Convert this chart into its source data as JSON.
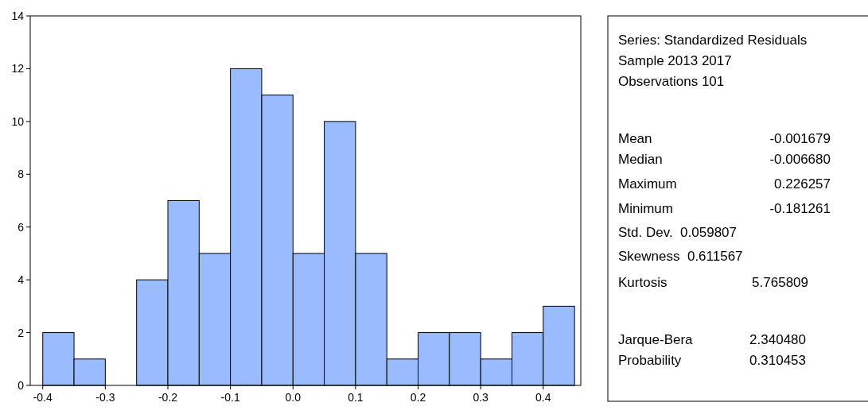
{
  "chart_data": {
    "type": "histogram",
    "bins": [
      -0.4,
      -0.35,
      -0.3,
      -0.25,
      -0.2,
      -0.15,
      -0.1,
      -0.05,
      0,
      0.05,
      0.1,
      0.15,
      0.2,
      0.25,
      0.3,
      0.35,
      0.4,
      0.45
    ],
    "values": [
      2,
      1,
      0,
      4,
      7,
      5,
      12,
      11,
      5,
      10,
      5,
      1,
      2,
      2,
      1,
      2,
      3
    ],
    "color": "#99bbff",
    "xlim": [
      -0.42,
      0.46
    ],
    "xticks": [
      -0.4,
      -0.3,
      -0.2,
      -0.1,
      {
        "value": 0,
        "label": "0.0"
      },
      0.1,
      0.2,
      0.3,
      0.4
    ],
    "ylim": [
      0,
      14
    ],
    "yticks": [
      0,
      2,
      4,
      6,
      8,
      10,
      12,
      14
    ],
    "grid": false,
    "annotations": [
      "Series: Standardized Residuals",
      "Sample 2013 2017",
      "Observations 101",
      "Mean",
      "-0.001679",
      "Median",
      "-0.006680",
      "Maximum",
      "0.226257",
      "Minimum",
      "-0.181261",
      "Std. Dev.  0.059807",
      "Skewness  0.611567",
      "Kurtosis",
      "5.765809",
      "Jarque-Bera",
      "2.340480",
      "Probability",
      "0.310453"
    ]
  }
}
